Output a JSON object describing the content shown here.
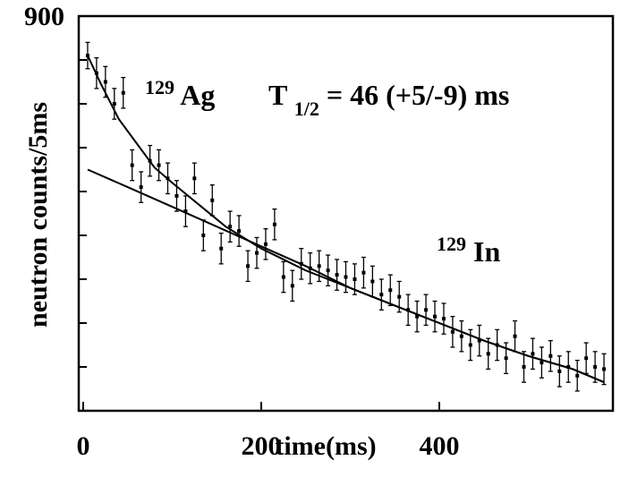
{
  "chart_data": {
    "type": "scatter",
    "title": "",
    "xlabel": "time(ms)",
    "ylabel": "neutron counts/5ms",
    "xlim": [
      -5,
      595
    ],
    "ylim": [
      0,
      900
    ],
    "x_tick_labels": [
      {
        "value": 0,
        "text": "0"
      },
      {
        "value": 200,
        "text": "200"
      },
      {
        "value": 400,
        "text": "400"
      }
    ],
    "y_tick_labels": [
      {
        "value": 900,
        "text": "900"
      }
    ],
    "y_minor_ticks": [
      100,
      200,
      300,
      400,
      500,
      600,
      700,
      800
    ],
    "annotations": {
      "ag_mass": "129",
      "ag_symbol": "Ag",
      "halflife_T": "T",
      "halflife_sub": "1/2",
      "halflife_value": " = 46 (+5/-9) ms",
      "in_mass": "129",
      "in_symbol": "In"
    },
    "series": [
      {
        "points": [
          {
            "x": 5,
            "y": 810,
            "err": 30
          },
          {
            "x": 15,
            "y": 770,
            "err": 35
          },
          {
            "x": 25,
            "y": 750,
            "err": 35
          },
          {
            "x": 35,
            "y": 700,
            "err": 35
          },
          {
            "x": 45,
            "y": 725,
            "err": 35
          },
          {
            "x": 55,
            "y": 560,
            "err": 35
          },
          {
            "x": 65,
            "y": 510,
            "err": 35
          },
          {
            "x": 75,
            "y": 570,
            "err": 35
          },
          {
            "x": 85,
            "y": 560,
            "err": 35
          },
          {
            "x": 95,
            "y": 530,
            "err": 35
          },
          {
            "x": 105,
            "y": 490,
            "err": 35
          },
          {
            "x": 115,
            "y": 455,
            "err": 35
          },
          {
            "x": 125,
            "y": 530,
            "err": 35
          },
          {
            "x": 135,
            "y": 400,
            "err": 35
          },
          {
            "x": 145,
            "y": 480,
            "err": 35
          },
          {
            "x": 155,
            "y": 370,
            "err": 35
          },
          {
            "x": 165,
            "y": 420,
            "err": 35
          },
          {
            "x": 175,
            "y": 410,
            "err": 35
          },
          {
            "x": 185,
            "y": 330,
            "err": 35
          },
          {
            "x": 195,
            "y": 360,
            "err": 35
          },
          {
            "x": 205,
            "y": 380,
            "err": 35
          },
          {
            "x": 215,
            "y": 425,
            "err": 35
          },
          {
            "x": 225,
            "y": 305,
            "err": 35
          },
          {
            "x": 235,
            "y": 285,
            "err": 35
          },
          {
            "x": 245,
            "y": 335,
            "err": 35
          },
          {
            "x": 255,
            "y": 325,
            "err": 35
          },
          {
            "x": 265,
            "y": 330,
            "err": 35
          },
          {
            "x": 275,
            "y": 320,
            "err": 35
          },
          {
            "x": 285,
            "y": 310,
            "err": 35
          },
          {
            "x": 295,
            "y": 305,
            "err": 35
          },
          {
            "x": 305,
            "y": 300,
            "err": 35
          },
          {
            "x": 315,
            "y": 315,
            "err": 35
          },
          {
            "x": 325,
            "y": 295,
            "err": 35
          },
          {
            "x": 335,
            "y": 265,
            "err": 35
          },
          {
            "x": 345,
            "y": 275,
            "err": 35
          },
          {
            "x": 355,
            "y": 260,
            "err": 35
          },
          {
            "x": 365,
            "y": 230,
            "err": 35
          },
          {
            "x": 375,
            "y": 215,
            "err": 35
          },
          {
            "x": 385,
            "y": 230,
            "err": 35
          },
          {
            "x": 395,
            "y": 215,
            "err": 35
          },
          {
            "x": 405,
            "y": 210,
            "err": 35
          },
          {
            "x": 415,
            "y": 180,
            "err": 35
          },
          {
            "x": 425,
            "y": 170,
            "err": 35
          },
          {
            "x": 435,
            "y": 150,
            "err": 35
          },
          {
            "x": 445,
            "y": 160,
            "err": 35
          },
          {
            "x": 455,
            "y": 130,
            "err": 35
          },
          {
            "x": 465,
            "y": 150,
            "err": 35
          },
          {
            "x": 475,
            "y": 120,
            "err": 35
          },
          {
            "x": 485,
            "y": 170,
            "err": 35
          },
          {
            "x": 495,
            "y": 100,
            "err": 35
          },
          {
            "x": 505,
            "y": 130,
            "err": 35
          },
          {
            "x": 515,
            "y": 110,
            "err": 35
          },
          {
            "x": 525,
            "y": 125,
            "err": 35
          },
          {
            "x": 535,
            "y": 90,
            "err": 35
          },
          {
            "x": 545,
            "y": 100,
            "err": 35
          },
          {
            "x": 555,
            "y": 80,
            "err": 35
          },
          {
            "x": 565,
            "y": 120,
            "err": 35
          },
          {
            "x": 575,
            "y": 100,
            "err": 35
          },
          {
            "x": 585,
            "y": 95,
            "err": 35
          }
        ]
      },
      {
        "type": "line",
        "points": [
          {
            "x": 5,
            "y": 810
          },
          {
            "x": 20,
            "y": 745
          },
          {
            "x": 40,
            "y": 665
          },
          {
            "x": 60,
            "y": 610
          },
          {
            "x": 80,
            "y": 555
          },
          {
            "x": 100,
            "y": 520
          },
          {
            "x": 130,
            "y": 470
          },
          {
            "x": 160,
            "y": 420
          },
          {
            "x": 200,
            "y": 370
          },
          {
            "x": 250,
            "y": 320
          },
          {
            "x": 300,
            "y": 280
          },
          {
            "x": 350,
            "y": 240
          },
          {
            "x": 400,
            "y": 200
          },
          {
            "x": 450,
            "y": 160
          },
          {
            "x": 500,
            "y": 125
          },
          {
            "x": 550,
            "y": 95
          },
          {
            "x": 585,
            "y": 65
          }
        ]
      },
      {
        "type": "line",
        "points": [
          {
            "x": 5,
            "y": 550
          },
          {
            "x": 50,
            "y": 510
          },
          {
            "x": 100,
            "y": 465
          },
          {
            "x": 150,
            "y": 420
          },
          {
            "x": 200,
            "y": 375
          },
          {
            "x": 250,
            "y": 330
          },
          {
            "x": 300,
            "y": 280
          },
          {
            "x": 350,
            "y": 240
          },
          {
            "x": 400,
            "y": 200
          },
          {
            "x": 450,
            "y": 160
          },
          {
            "x": 500,
            "y": 125
          },
          {
            "x": 550,
            "y": 95
          },
          {
            "x": 585,
            "y": 65
          }
        ]
      }
    ]
  }
}
